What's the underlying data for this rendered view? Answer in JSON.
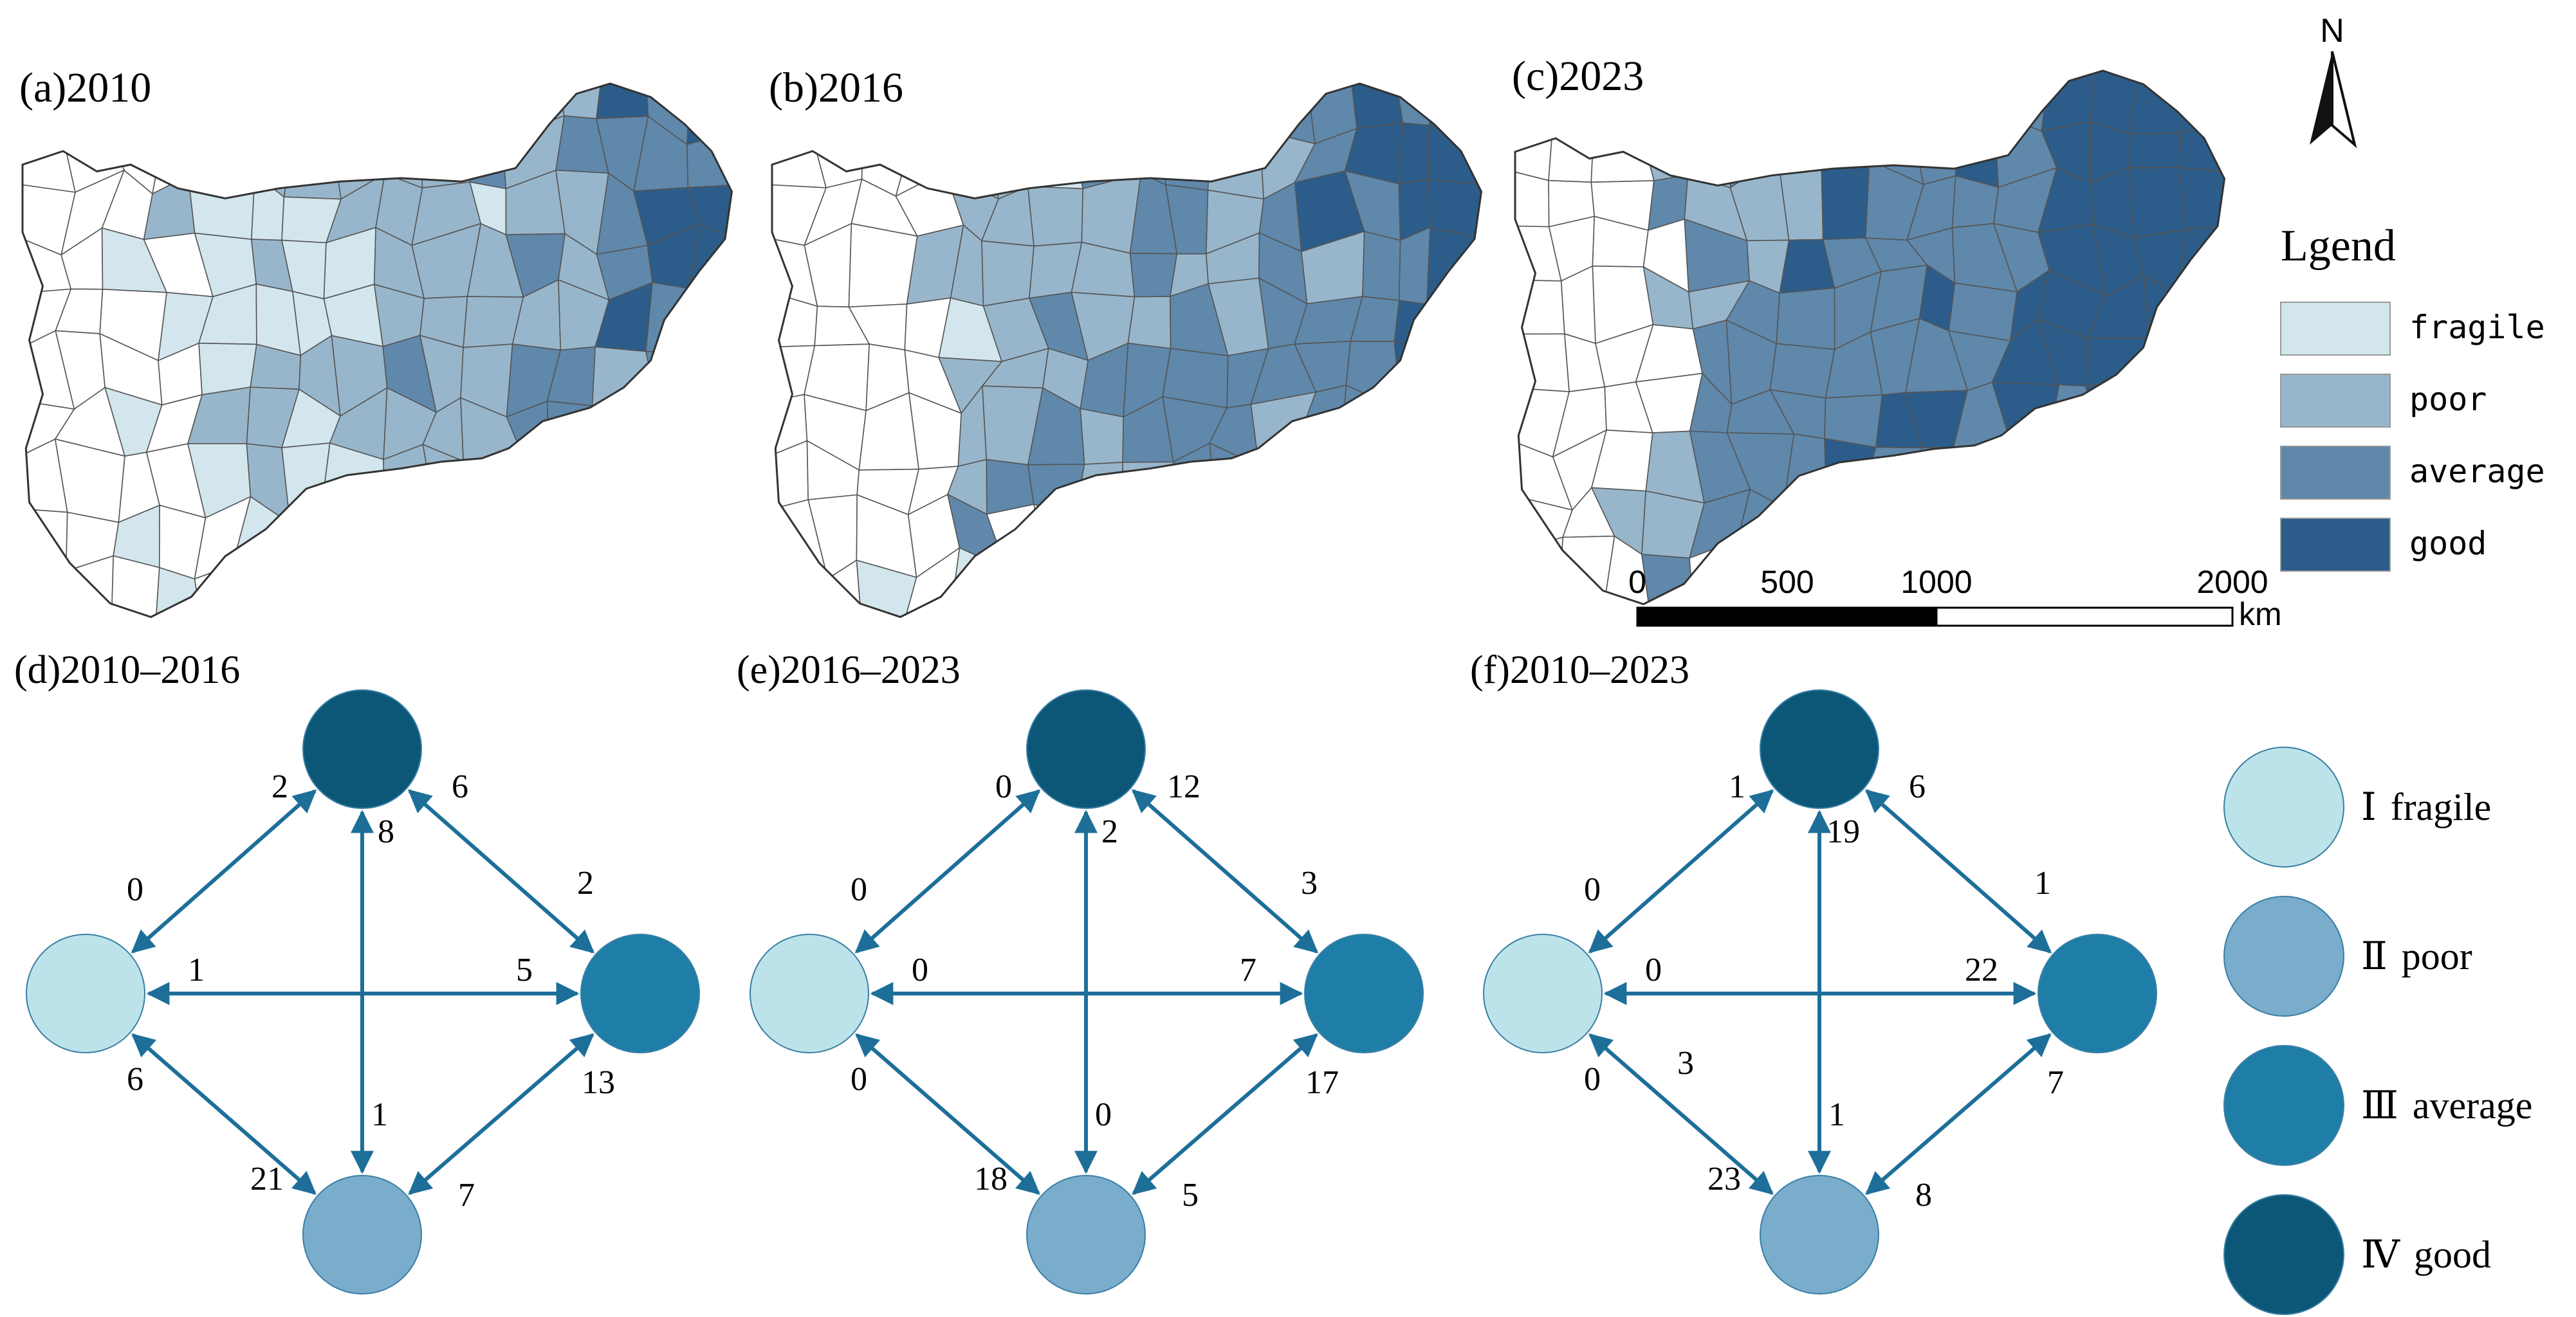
{
  "colors": {
    "fragile": "#d3e6ee",
    "poor": "#98b6cb",
    "average": "#5f88ab",
    "good": "#2c5c89",
    "blank": "#ffffff",
    "node_I": "#bde3ea",
    "node_II": "#7aaccb",
    "node_III": "#1f7ea8",
    "node_IV": "#0c5777",
    "arrow": "#1d6f99"
  },
  "maps": [
    {
      "label": "(a)2010"
    },
    {
      "label": "(b)2016"
    },
    {
      "label": "(c)2023"
    }
  ],
  "north": {
    "label": "N"
  },
  "legend": {
    "title": "Lgend",
    "items": [
      {
        "key": "fragile",
        "label": "fragile"
      },
      {
        "key": "poor",
        "label": "poor"
      },
      {
        "key": "average",
        "label": "average"
      },
      {
        "key": "good",
        "label": "good"
      }
    ]
  },
  "scalebar": {
    "ticks": [
      "0",
      "500",
      "1000",
      "2000"
    ],
    "unit": "km"
  },
  "networks": [
    {
      "label": "(d)2010–2016",
      "counts": {
        "I_IV": "0",
        "IV_I": "2",
        "IV_III": "6",
        "III_IV": "2",
        "I_III": "1",
        "III_I": "5",
        "I_II": "6",
        "II_I": "21",
        "III_II": "13",
        "II_III": "7",
        "IV_II": "8",
        "II_IV": "1"
      }
    },
    {
      "label": "(e)2016–2023",
      "counts": {
        "I_IV": "0",
        "IV_I": "0",
        "IV_III": "12",
        "III_IV": "3",
        "I_III": "0",
        "III_I": "7",
        "I_II": "0",
        "II_I": "18",
        "III_II": "17",
        "II_III": "5",
        "IV_II": "2",
        "II_IV": "0"
      }
    },
    {
      "label": "(f)2010–2023",
      "counts": {
        "I_IV": "0",
        "IV_I": "1",
        "IV_III": "6",
        "III_IV": "1",
        "I_III": "0",
        "III_I": "22",
        "I_II": "0",
        "II_I": "23",
        "III_II": "7",
        "II_III": "8",
        "IV_II": "19",
        "II_IV": "1",
        "extra": "3"
      }
    }
  ],
  "node_legend": [
    {
      "numeral": "Ⅰ",
      "label": "fragile"
    },
    {
      "numeral": "Ⅱ",
      "label": "poor"
    },
    {
      "numeral": "Ⅲ",
      "label": "average"
    },
    {
      "numeral": "Ⅳ",
      "label": "good"
    }
  ]
}
